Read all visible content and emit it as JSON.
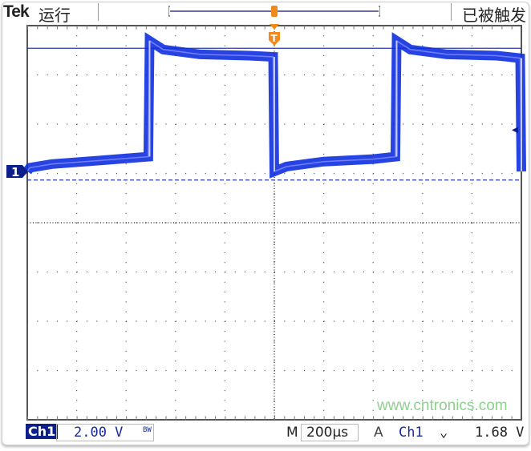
{
  "header": {
    "brand": "Tek",
    "run_state": "运行",
    "trigger_state": "已被触发",
    "trigger_marker": "T"
  },
  "footer": {
    "channel": "Ch1",
    "volts_per_div": "2.00 V",
    "bandwidth_limit": "BW",
    "timebase_label": "M",
    "time_per_div": "200µs",
    "trigger_label": "A",
    "trigger_source": "Ch1",
    "trigger_slope": "falling",
    "trigger_slope_glyph": "⌄",
    "trigger_level": "1.68 V",
    "watermark": "www.cntronics.com"
  },
  "colors": {
    "trace": "#1030e0",
    "ground_marker": "#0c1f8a",
    "trigger_marker": "#f08a1c",
    "grid": "#444444"
  },
  "chart_data": {
    "type": "line",
    "grid": true,
    "x_divisions": 10,
    "y_divisions": 8,
    "xlabel": "",
    "ylabel": "",
    "x_unit": "ms",
    "y_unit": "V",
    "xlim": [
      -1.0,
      1.0
    ],
    "ylim": [
      -8.0,
      8.0
    ],
    "ground_level": 0,
    "trigger_time": 0,
    "trigger_level": 1.68,
    "reference_dashed_level": -0.35,
    "persistence_high_level": 5.0,
    "series": [
      {
        "points": [
          [
            -1.0,
            0.0
          ],
          [
            -0.99,
            0.15
          ],
          [
            -0.9,
            0.3
          ],
          [
            -0.7,
            0.45
          ],
          [
            -0.51,
            0.6
          ],
          [
            -0.505,
            5.3
          ],
          [
            -0.45,
            4.95
          ],
          [
            -0.3,
            4.75
          ],
          [
            -0.1,
            4.7
          ],
          [
            -0.005,
            4.65
          ],
          [
            0.0,
            0.0
          ],
          [
            0.05,
            0.2
          ],
          [
            0.2,
            0.4
          ],
          [
            0.4,
            0.5
          ],
          [
            0.49,
            0.6
          ],
          [
            0.495,
            5.3
          ],
          [
            0.55,
            4.95
          ],
          [
            0.7,
            4.75
          ],
          [
            0.9,
            4.7
          ],
          [
            0.995,
            4.6
          ],
          [
            1.0,
            0.0
          ]
        ]
      }
    ]
  }
}
